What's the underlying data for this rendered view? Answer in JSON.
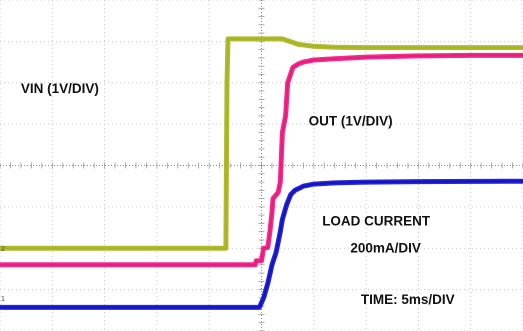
{
  "chart_data": {
    "type": "line",
    "title": "",
    "xlabel": "",
    "ylabel": "",
    "grid": true,
    "grid_divisions": {
      "x": 10,
      "y": 8
    },
    "xlim": [
      -25,
      25
    ],
    "ylim": [
      -4,
      4
    ],
    "x_unit": "ms",
    "series": [
      {
        "name": "VIN (1V/DIV)",
        "color": "#a8b41e",
        "x": [
          -25,
          -3.4,
          -3.3,
          -3.2,
          0,
          2,
          3.5,
          5,
          7,
          10,
          25
        ],
        "y": [
          -2.0,
          -2.0,
          2.0,
          3.06,
          3.06,
          3.06,
          2.93,
          2.88,
          2.86,
          2.85,
          2.85
        ]
      },
      {
        "name": "OUT (1V/DIV)",
        "color": "#ec1a7e",
        "x": [
          -25,
          -0.6,
          -0.5,
          0,
          0.2,
          0.6,
          0.8,
          1.0,
          1.1,
          1.6,
          1.8,
          2.0,
          2.3,
          2.5,
          3.0,
          3.5,
          4,
          5,
          7,
          10,
          15,
          20,
          25
        ],
        "y": [
          -2.4,
          -2.4,
          -2.3,
          -2.3,
          -2.0,
          -1.98,
          -1.6,
          -1.13,
          -0.8,
          -0.65,
          -0.4,
          0.8,
          1.2,
          2.0,
          2.37,
          2.45,
          2.5,
          2.55,
          2.58,
          2.62,
          2.65,
          2.66,
          2.66
        ]
      },
      {
        "name": "LOAD CURRENT 200mA/DIV",
        "color": "#1111cc",
        "x": [
          -25,
          -0.2,
          0.2,
          0.6,
          1.0,
          1.4,
          1.8,
          2.0,
          2.4,
          2.8,
          3.2,
          3.6,
          4,
          5,
          7,
          10,
          15,
          25
        ],
        "y": [
          -3.43,
          -3.43,
          -3.2,
          -2.85,
          -2.4,
          -2.1,
          -1.6,
          -1.3,
          -0.95,
          -0.7,
          -0.6,
          -0.55,
          -0.5,
          -0.45,
          -0.42,
          -0.4,
          -0.39,
          -0.38
        ]
      }
    ],
    "annotations": [
      {
        "text": "VIN (1V/DIV)",
        "x": -23,
        "y": 1.75
      },
      {
        "text": "OUT (1V/DIV)",
        "x": 4.5,
        "y": 0.97
      },
      {
        "text": "LOAD CURRENT",
        "x": 5.8,
        "y": -1.45
      },
      {
        "text": "200mA/DIV",
        "x": 8.5,
        "y": -2.1
      },
      {
        "text": "TIME: 5ms/DIV",
        "x": 9.5,
        "y": -3.35
      }
    ],
    "channel_markers": [
      "2",
      "1"
    ]
  }
}
